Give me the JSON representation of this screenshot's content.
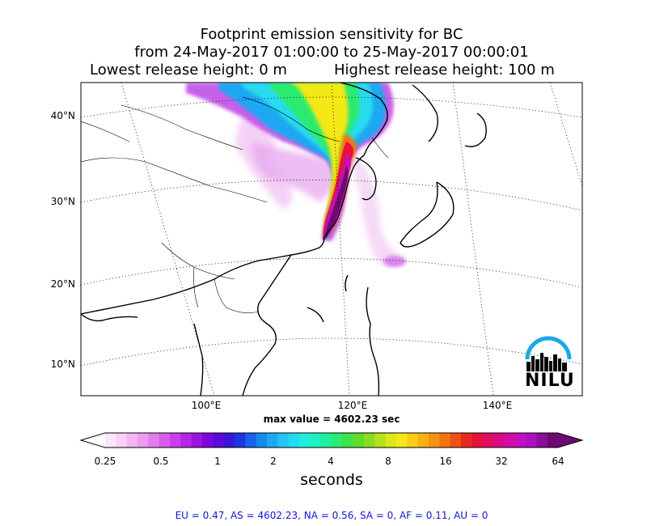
{
  "title": {
    "line1": "Footprint emission sensitivity for BC",
    "line2": "from 24-May-2017 01:00:00 to 25-May-2017 00:00:01",
    "release_low": "Lowest release height: 0 m",
    "release_high": "Highest release height: 100 m"
  },
  "map": {
    "lat_labels": [
      "40°N",
      "30°N",
      "20°N",
      "10°N"
    ],
    "lon_labels": [
      "100°E",
      "120°E",
      "140°E"
    ],
    "max_value": "max value = 4602.23 sec",
    "logo": {
      "text": "NILU",
      "icon": "nilu-logo-icon"
    }
  },
  "colorbar": {
    "ticks": [
      "0.25",
      "0.5",
      "1",
      "2",
      "4",
      "8",
      "16",
      "32",
      "64"
    ],
    "unit": "seconds",
    "colors": [
      "#fde6fb",
      "#f9d0f6",
      "#f3b6f1",
      "#ec9bef",
      "#e37ded",
      "#d95deb",
      "#c940e8",
      "#b526e4",
      "#9c12e0",
      "#7c07dc",
      "#5b0bd9",
      "#3a17d7",
      "#1f37e0",
      "#1462e8",
      "#1688ee",
      "#1ca9f2",
      "#22c6f2",
      "#25dcee",
      "#22ece0",
      "#1ff0c4",
      "#20eea0",
      "#2aeb70",
      "#3fe24a",
      "#62dc2a",
      "#8cdd20",
      "#b5e21a",
      "#dae818",
      "#f4e818",
      "#f8cd14",
      "#f9b013",
      "#f79212",
      "#f47411",
      "#ef5015",
      "#e9291e",
      "#e5123c",
      "#e00c60",
      "#da0a84",
      "#d00ca4",
      "#c40ebf",
      "#ac10c4",
      "#8c0d98",
      "#6c0a70"
    ],
    "vmin_label": "0.25",
    "vmax_label": "64"
  },
  "footer": "EU = 0.47,  AS = 4602.23,  NA = 0.56,  SA = 0,  AF = 0.11,  AU = 0"
}
